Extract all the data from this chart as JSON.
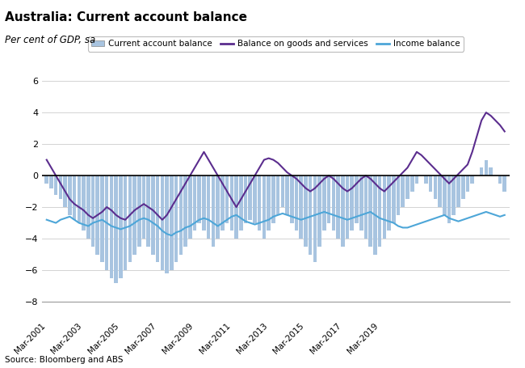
{
  "title": "Australia: Current account balance",
  "subtitle": "Per cent of GDP, sa",
  "source": "Source: Bloomberg and ABS",
  "legend_labels": [
    "Current account balance",
    "Balance on goods and services",
    "Income balance"
  ],
  "bar_color": "#a8c4e0",
  "goods_color": "#5b2d8e",
  "income_color": "#4da6d8",
  "ylim": [
    -8,
    6
  ],
  "yticks": [
    -8,
    -6,
    -4,
    -2,
    0,
    2,
    4,
    6
  ],
  "xtick_labels": [
    "Mar-2001",
    "Mar-2003",
    "Mar-2005",
    "Mar-2007",
    "Mar-2009",
    "Mar-2011",
    "Mar-2013",
    "Mar-2015",
    "Mar-2017",
    "Mar-2019"
  ],
  "current_account": [
    -0.5,
    -0.8,
    -1.2,
    -1.5,
    -2.0,
    -2.5,
    -2.8,
    -3.0,
    -3.5,
    -4.0,
    -4.5,
    -5.0,
    -5.5,
    -6.0,
    -6.5,
    -6.8,
    -6.5,
    -6.0,
    -5.5,
    -5.0,
    -4.5,
    -4.0,
    -4.5,
    -5.0,
    -5.5,
    -6.0,
    -6.2,
    -6.0,
    -5.5,
    -5.0,
    -4.5,
    -4.0,
    -3.5,
    -3.0,
    -3.5,
    -4.0,
    -4.5,
    -4.0,
    -3.5,
    -3.0,
    -3.5,
    -4.0,
    -3.5,
    -3.0,
    -2.8,
    -3.0,
    -3.5,
    -4.0,
    -3.5,
    -3.0,
    -2.5,
    -2.0,
    -2.5,
    -3.0,
    -3.5,
    -4.0,
    -4.5,
    -5.0,
    -5.5,
    -4.5,
    -3.5,
    -3.0,
    -3.5,
    -4.0,
    -4.5,
    -4.0,
    -3.5,
    -3.0,
    -3.5,
    -4.0,
    -4.5,
    -5.0,
    -4.5,
    -4.0,
    -3.5,
    -3.0,
    -2.5,
    -2.0,
    -1.5,
    -1.0,
    -0.5,
    0.0,
    -0.5,
    -1.0,
    -1.5,
    -2.0,
    -2.5,
    -3.0,
    -2.5,
    -2.0,
    -1.5,
    -1.0,
    -0.5,
    0.0,
    0.5,
    1.0,
    0.5,
    0.0,
    -0.5,
    -1.0
  ],
  "goods_services": [
    1.0,
    0.5,
    0.0,
    -0.5,
    -1.0,
    -1.5,
    -1.8,
    -2.0,
    -2.2,
    -2.5,
    -2.7,
    -2.5,
    -2.3,
    -2.0,
    -2.2,
    -2.5,
    -2.7,
    -2.8,
    -2.5,
    -2.2,
    -2.0,
    -1.8,
    -2.0,
    -2.2,
    -2.5,
    -2.8,
    -2.5,
    -2.0,
    -1.5,
    -1.0,
    -0.5,
    0.0,
    0.5,
    1.0,
    1.5,
    1.0,
    0.5,
    0.0,
    -0.5,
    -1.0,
    -1.5,
    -2.0,
    -1.5,
    -1.0,
    -0.5,
    0.0,
    0.5,
    1.0,
    1.1,
    1.0,
    0.8,
    0.5,
    0.2,
    0.0,
    -0.2,
    -0.5,
    -0.8,
    -1.0,
    -0.8,
    -0.5,
    -0.2,
    0.0,
    -0.2,
    -0.5,
    -0.8,
    -1.0,
    -0.8,
    -0.5,
    -0.2,
    0.0,
    -0.2,
    -0.5,
    -0.8,
    -1.0,
    -0.7,
    -0.4,
    -0.1,
    0.2,
    0.5,
    1.0,
    1.5,
    1.3,
    1.0,
    0.7,
    0.4,
    0.1,
    -0.2,
    -0.5,
    -0.2,
    0.1,
    0.4,
    0.7,
    1.5,
    2.5,
    3.5,
    4.0,
    3.8,
    3.5,
    3.2,
    2.8
  ],
  "income_balance": [
    -2.8,
    -2.9,
    -3.0,
    -2.8,
    -2.7,
    -2.6,
    -2.8,
    -3.0,
    -3.1,
    -3.2,
    -3.0,
    -2.9,
    -2.8,
    -3.0,
    -3.2,
    -3.3,
    -3.4,
    -3.3,
    -3.2,
    -3.0,
    -2.8,
    -2.7,
    -2.8,
    -3.0,
    -3.2,
    -3.5,
    -3.7,
    -3.8,
    -3.6,
    -3.5,
    -3.3,
    -3.2,
    -3.0,
    -2.8,
    -2.7,
    -2.8,
    -3.0,
    -3.2,
    -3.0,
    -2.8,
    -2.6,
    -2.5,
    -2.7,
    -2.9,
    -3.0,
    -3.1,
    -3.0,
    -2.9,
    -2.8,
    -2.6,
    -2.5,
    -2.4,
    -2.5,
    -2.6,
    -2.7,
    -2.8,
    -2.7,
    -2.6,
    -2.5,
    -2.4,
    -2.3,
    -2.4,
    -2.5,
    -2.6,
    -2.7,
    -2.8,
    -2.7,
    -2.6,
    -2.5,
    -2.4,
    -2.3,
    -2.5,
    -2.7,
    -2.8,
    -2.9,
    -3.0,
    -3.2,
    -3.3,
    -3.3,
    -3.2,
    -3.1,
    -3.0,
    -2.9,
    -2.8,
    -2.7,
    -2.6,
    -2.5,
    -2.7,
    -2.8,
    -2.9,
    -2.8,
    -2.7,
    -2.6,
    -2.5,
    -2.4,
    -2.3,
    -2.4,
    -2.5,
    -2.6,
    -2.5
  ]
}
